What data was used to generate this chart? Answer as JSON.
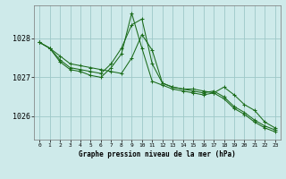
{
  "title": "Graphe pression niveau de la mer (hPa)",
  "bg_color": "#ceeaea",
  "grid_color": "#9ec8c8",
  "line_color": "#1a6b1a",
  "marker_color": "#1a6b1a",
  "ylim": [
    1025.4,
    1028.85
  ],
  "yticks": [
    1026,
    1027,
    1028
  ],
  "xlim": [
    -0.5,
    23.5
  ],
  "xticks": [
    0,
    1,
    2,
    3,
    4,
    5,
    6,
    7,
    8,
    9,
    10,
    11,
    12,
    13,
    14,
    15,
    16,
    17,
    18,
    19,
    20,
    21,
    22,
    23
  ],
  "series": [
    [
      1027.9,
      1027.75,
      1027.55,
      1027.35,
      1027.3,
      1027.25,
      1027.2,
      1027.15,
      1027.1,
      1027.5,
      1028.1,
      1027.7,
      1026.85,
      1026.75,
      1026.7,
      1026.7,
      1026.65,
      1026.6,
      1026.75,
      1026.55,
      1026.3,
      1026.15,
      1025.85,
      1025.7
    ],
    [
      1027.9,
      1027.75,
      1027.45,
      1027.25,
      1027.2,
      1027.15,
      1027.1,
      1027.35,
      1027.75,
      1028.35,
      1028.5,
      1027.35,
      1026.85,
      1026.75,
      1026.7,
      1026.65,
      1026.6,
      1026.65,
      1026.5,
      1026.25,
      1026.1,
      1025.9,
      1025.75,
      1025.65
    ],
    [
      1027.9,
      1027.75,
      1027.4,
      1027.2,
      1027.15,
      1027.05,
      1027.0,
      1027.25,
      1027.6,
      1028.65,
      1027.75,
      1026.9,
      1026.8,
      1026.7,
      1026.65,
      1026.6,
      1026.55,
      1026.6,
      1026.45,
      1026.2,
      1026.05,
      1025.85,
      1025.7,
      1025.6
    ]
  ],
  "figwidth": 3.2,
  "figheight": 2.0,
  "dpi": 100
}
